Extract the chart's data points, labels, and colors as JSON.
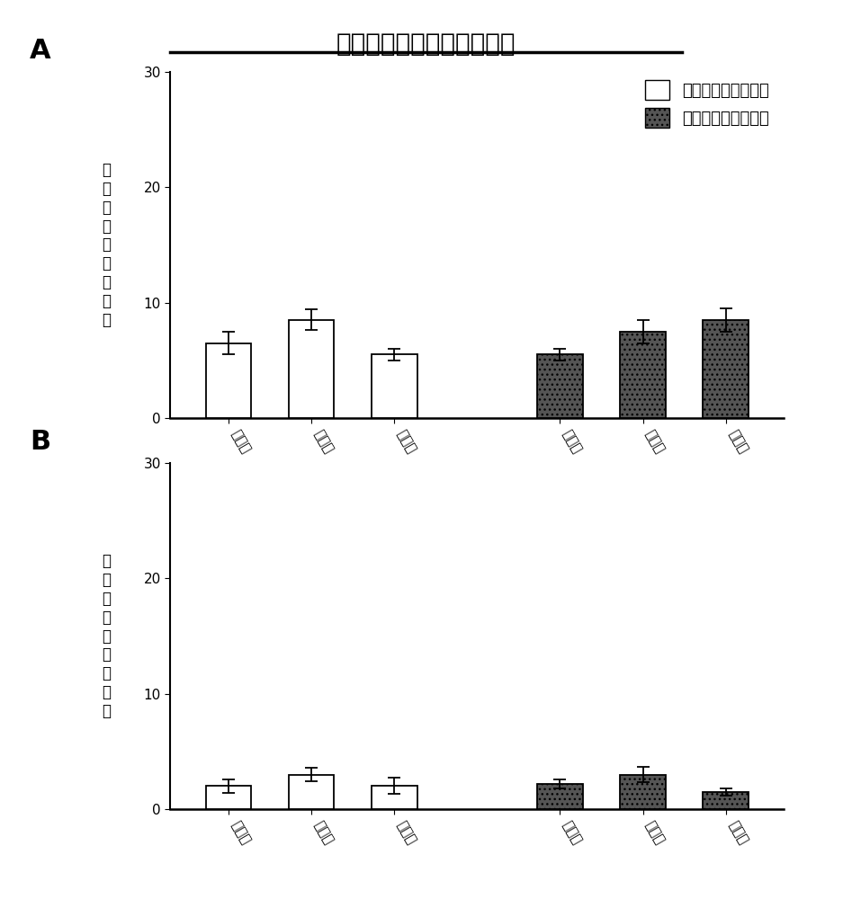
{
  "title": "咐啊自身给药消退最后三天",
  "panel_A_ylabel": "有效摆触水平（次）",
  "panel_B_ylabel": "无效摆触水平（次）",
  "xlabel_labels": [
    "第一天",
    "第二天",
    "第三天",
    "第一天",
    "第二天",
    "第三天"
  ],
  "legend_saline": "即将给予生理盐水组",
  "legend_carmustine": "即将给予卡莫司汀组",
  "panel_A_saline_values": [
    6.5,
    8.5,
    5.5
  ],
  "panel_A_saline_errors": [
    1.0,
    0.9,
    0.5
  ],
  "panel_A_carmustine_values": [
    5.5,
    7.5,
    8.5
  ],
  "panel_A_carmustine_errors": [
    0.5,
    1.0,
    1.0
  ],
  "panel_B_saline_values": [
    2.0,
    3.0,
    2.0
  ],
  "panel_B_saline_errors": [
    0.6,
    0.6,
    0.7
  ],
  "panel_B_carmustine_values": [
    2.2,
    3.0,
    1.5
  ],
  "panel_B_carmustine_errors": [
    0.4,
    0.7,
    0.3
  ],
  "ylim_A": [
    0,
    30
  ],
  "ylim_B": [
    0,
    30
  ],
  "yticks_A": [
    0,
    10,
    20,
    30
  ],
  "yticks_B": [
    0,
    10,
    20,
    30
  ],
  "saline_color": "#ffffff",
  "carmustine_color": "#555555",
  "bar_edgecolor": "#000000",
  "bar_width": 0.55,
  "label_A": "A",
  "label_B": "B",
  "title_fontsize": 20,
  "axis_fontsize": 12,
  "tick_fontsize": 11,
  "legend_fontsize": 13,
  "label_fontsize": 22
}
